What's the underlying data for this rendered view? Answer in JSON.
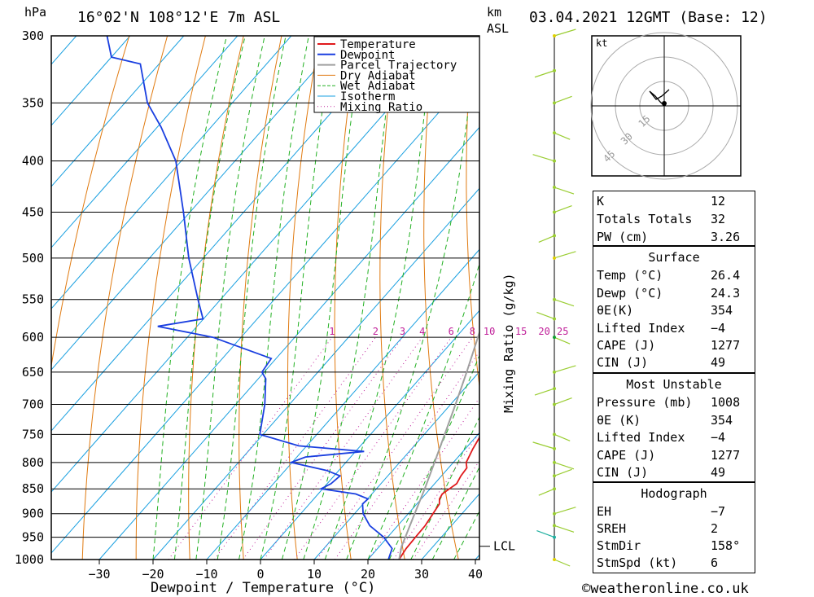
{
  "header": {
    "pressure_unit": "hPa",
    "location": "16°02'N 108°12'E 7m ASL",
    "height_unit_line1": "km",
    "height_unit_line2": "ASL",
    "datetime": "03.04.2021 12GMT (Base: 12)"
  },
  "colors": {
    "temperature": "#e0191c",
    "dewpoint": "#1a3fe0",
    "parcel": "#a0a0a0",
    "dry_adiabat": "#e07a10",
    "wet_adiabat": "#22b022",
    "isotherm": "#1aa0e0",
    "mixing_ratio": "#c0209a",
    "wind_barb": "#9acd32"
  },
  "chart_data": {
    "type": "skew-t",
    "xlabel": "Dewpoint / Temperature (°C)",
    "ylabel": "hPa",
    "mixing_ratio_axis_label": "Mixing Ratio (g/kg)",
    "pressure_levels": [
      300,
      350,
      400,
      450,
      500,
      550,
      600,
      650,
      700,
      750,
      800,
      850,
      900,
      950,
      1000
    ],
    "pressure_tick_labels": [
      "300",
      "350",
      "400",
      "450",
      "500",
      "550",
      "600",
      "650",
      "700",
      "750",
      "800",
      "850",
      "900",
      "950",
      "1000"
    ],
    "temperature_ticks": [
      -30,
      -20,
      -10,
      0,
      10,
      20,
      30,
      40
    ],
    "temperature_tick_labels": [
      "−30",
      "−20",
      "−10",
      "0",
      "10",
      "20",
      "30",
      "40"
    ],
    "ylim": [
      1000,
      300
    ],
    "xlim_at_1000hPa": [
      -40,
      40
    ],
    "mixing_ratio_labels": [
      "1",
      "2",
      "3",
      "4",
      "6",
      "8",
      "10",
      "15",
      "20",
      "25"
    ],
    "mixing_ratio_values": [
      1,
      2,
      3,
      4,
      6,
      8,
      10,
      15,
      20,
      25
    ],
    "lcl_label": "LCL",
    "lcl_pressure": 970,
    "legend": [
      "Temperature",
      "Dewpoint",
      "Parcel Trajectory",
      "Dry Adiabat",
      "Wet Adiabat",
      "Isotherm",
      "Mixing Ratio"
    ],
    "legend_position": "top-right",
    "series": [
      {
        "name": "Temperature",
        "points": [
          [
            1005,
            26.4
          ],
          [
            1000,
            25.8
          ],
          [
            990,
            25.6
          ],
          [
            975,
            25.3
          ],
          [
            950,
            25.2
          ],
          [
            925,
            25.1
          ],
          [
            900,
            24.6
          ],
          [
            880,
            24.2
          ],
          [
            870,
            23.4
          ],
          [
            860,
            23.1
          ],
          [
            850,
            23.6
          ],
          [
            840,
            24.1
          ],
          [
            825,
            23.6
          ],
          [
            810,
            23.4
          ],
          [
            800,
            22.4
          ],
          [
            775,
            21.4
          ],
          [
            750,
            20.6
          ],
          [
            700,
            16.4
          ],
          [
            650,
            12.8
          ],
          [
            600,
            9.6
          ],
          [
            575,
            8.3
          ],
          [
            550,
            5.4
          ],
          [
            500,
            0.4
          ],
          [
            450,
            -4.9
          ],
          [
            400,
            -11.6
          ],
          [
            375,
            -15.9
          ],
          [
            360,
            -18.1
          ],
          [
            330,
            -24.5
          ],
          [
            315,
            -30.9
          ],
          [
            300,
            -34.1
          ]
        ]
      },
      {
        "name": "Dewpoint",
        "points": [
          [
            1005,
            24.3
          ],
          [
            1000,
            23.8
          ],
          [
            975,
            22.7
          ],
          [
            950,
            19.3
          ],
          [
            925,
            14.8
          ],
          [
            900,
            11.6
          ],
          [
            880,
            9.9
          ],
          [
            870,
            10.1
          ],
          [
            860,
            7.0
          ],
          [
            850,
            -0.3
          ],
          [
            840,
            0.7
          ],
          [
            825,
            1.1
          ],
          [
            815,
            -2.2
          ],
          [
            800,
            -10.2
          ],
          [
            790,
            -8.4
          ],
          [
            780,
            1.6
          ],
          [
            770,
            -11.5
          ],
          [
            750,
            -20.6
          ],
          [
            700,
            -24.6
          ],
          [
            660,
            -28.6
          ],
          [
            650,
            -30.4
          ],
          [
            630,
            -30.9
          ],
          [
            600,
            -45.2
          ],
          [
            585,
            -57.3
          ],
          [
            575,
            -50.1
          ],
          [
            550,
            -54.2
          ],
          [
            500,
            -62.7
          ],
          [
            450,
            -71.2
          ],
          [
            400,
            -81.0
          ],
          [
            370,
            -89.3
          ],
          [
            350,
            -95.8
          ],
          [
            320,
            -103.5
          ],
          [
            315,
            -110.0
          ],
          [
            300,
            -114.3
          ]
        ]
      },
      {
        "name": "Parcel Trajectory",
        "points": [
          [
            1000,
            25.8
          ],
          [
            970,
            24.1
          ],
          [
            950,
            23.3
          ],
          [
            900,
            21.2
          ],
          [
            850,
            19.0
          ],
          [
            800,
            16.5
          ],
          [
            750,
            13.8
          ],
          [
            700,
            10.9
          ],
          [
            650,
            7.7
          ],
          [
            600,
            4.1
          ],
          [
            550,
            0.2
          ],
          [
            500,
            -4.7
          ],
          [
            450,
            -10.3
          ],
          [
            400,
            -16.8
          ],
          [
            360,
            -23.0
          ]
        ]
      }
    ],
    "wind_barb_levels": [
      1000,
      950,
      925,
      900,
      850,
      825,
      800,
      775,
      750,
      700,
      675,
      650,
      600,
      575,
      550,
      500,
      475,
      450,
      425,
      400,
      375,
      350,
      325,
      300
    ],
    "hodograph": {
      "unit_label": "kt",
      "ring_labels": [
        "15",
        "30",
        "45"
      ],
      "ring_values": [
        15,
        30,
        45
      ]
    }
  },
  "indices": {
    "rows": [
      {
        "label": "K",
        "value": "12"
      },
      {
        "label": "Totals Totals",
        "value": "32"
      },
      {
        "label": "PW (cm)",
        "value": "3.26"
      }
    ]
  },
  "surface": {
    "title": "Surface",
    "rows": [
      {
        "label": "Temp (°C)",
        "value": "26.4"
      },
      {
        "label": "Dewp (°C)",
        "value": "24.3"
      },
      {
        "label": "θE(K)",
        "value": "354"
      },
      {
        "label": "Lifted Index",
        "value": "−4"
      },
      {
        "label": "CAPE (J)",
        "value": "1277"
      },
      {
        "label": "CIN (J)",
        "value": "49"
      }
    ]
  },
  "most_unstable": {
    "title": "Most Unstable",
    "rows": [
      {
        "label": "Pressure (mb)",
        "value": "1008"
      },
      {
        "label": "θE (K)",
        "value": "354"
      },
      {
        "label": "Lifted Index",
        "value": "−4"
      },
      {
        "label": "CAPE (J)",
        "value": "1277"
      },
      {
        "label": "CIN (J)",
        "value": "49"
      }
    ]
  },
  "hodograph_panel": {
    "title": "Hodograph",
    "rows": [
      {
        "label": "EH",
        "value": "−7"
      },
      {
        "label": "SREH",
        "value": "2"
      },
      {
        "label": "StmDir",
        "value": "158°"
      },
      {
        "label": "StmSpd (kt)",
        "value": "6"
      }
    ]
  },
  "footer": {
    "copyright": "©weatheronline.co.uk"
  }
}
